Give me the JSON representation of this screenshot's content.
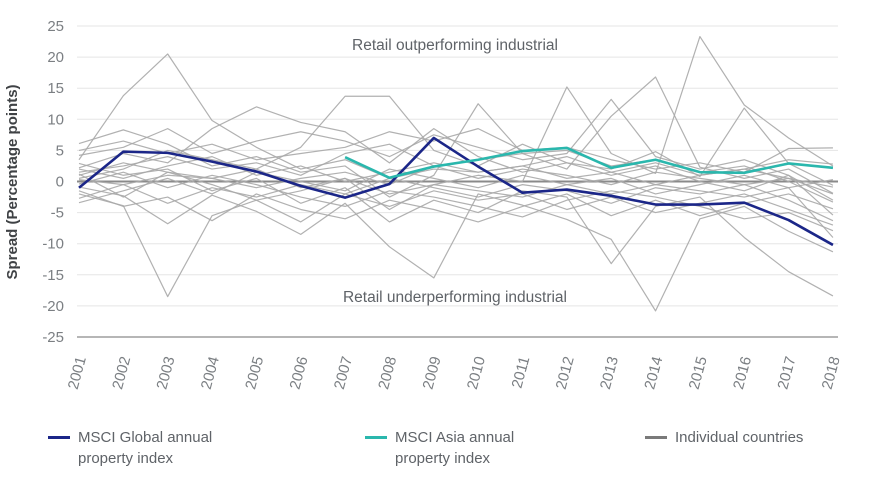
{
  "chart_data": {
    "type": "line",
    "title": "",
    "xlabel": "",
    "ylabel": "Spread (Percentage points)",
    "ylim": [
      -25,
      25
    ],
    "ytick_step": 5,
    "grid": "horizontal",
    "legend_position": "bottom",
    "x": [
      2001,
      2002,
      2003,
      2004,
      2005,
      2006,
      2007,
      2008,
      2009,
      2010,
      2011,
      2012,
      2013,
      2014,
      2015,
      2016,
      2017,
      2018
    ],
    "annotations": [
      {
        "text": "Retail outperforming industrial",
        "x": 2009.5,
        "y": 22
      },
      {
        "text": "Retail underperforming industrial",
        "x": 2009.5,
        "y": -18.5
      }
    ],
    "series": [
      {
        "name": "MSCI Global annual property index",
        "color": "#1b2688",
        "stroke_width": 2.6,
        "start_year": 2001,
        "values": [
          -1.0,
          4.8,
          4.6,
          3.2,
          1.6,
          -0.7,
          -2.6,
          -0.4,
          7.0,
          2.4,
          -1.8,
          -1.3,
          -2.3,
          -3.7,
          -3.7,
          -3.4,
          -6.2,
          -10.2
        ]
      },
      {
        "name": "MSCI Asia annual property index",
        "color": "#2ab7ad",
        "stroke_width": 2.6,
        "start_year": 2007,
        "values": [
          3.9,
          0.6,
          2.4,
          3.5,
          4.9,
          5.4,
          2.2,
          3.5,
          1.5,
          1.4,
          2.9,
          2.2
        ]
      },
      {
        "name": "Individual countries",
        "color": "#a9a9a9",
        "stroke_width": 1.2,
        "start_year": 2001,
        "lines": [
          [
            3.5,
            13.8,
            20.5,
            9.8,
            5.5,
            2.0,
            3.5,
            0.5,
            2.0,
            1.5,
            2.5,
            0.5,
            1.5,
            -0.5,
            1.0,
            2.0,
            0.5,
            -2.0
          ],
          [
            -2.0,
            -3.9,
            -18.5,
            -5.5,
            -3.0,
            -6.5,
            -2.0,
            -4.0,
            -1.5,
            -3.0,
            -2.0,
            -4.5,
            -2.5,
            -5.0,
            -3.5,
            -2.0,
            -4.5,
            -7.0
          ],
          [
            2.2,
            4.5,
            3.0,
            8.5,
            12.0,
            9.5,
            8.0,
            3.0,
            8.5,
            4.0,
            1.5,
            3.0,
            1.0,
            2.5,
            0.0,
            -1.5,
            1.0,
            -3.0
          ],
          [
            0.5,
            2.0,
            5.0,
            3.5,
            2.0,
            5.5,
            13.7,
            13.7,
            5.0,
            2.5,
            6.0,
            3.0,
            2.0,
            4.8,
            0.8,
            11.8,
            2.9,
            -0.6
          ],
          [
            6.1,
            8.3,
            6.0,
            2.5,
            4.0,
            1.5,
            2.5,
            -2.5,
            1.0,
            12.5,
            4.5,
            2.0,
            10.5,
            16.8,
            2.3,
            0.5,
            2.0,
            -1.9
          ],
          [
            1.0,
            3.0,
            1.5,
            0.5,
            2.0,
            -1.0,
            0.5,
            -2.0,
            -0.5,
            1.0,
            0.0,
            15.2,
            4.5,
            1.3,
            23.3,
            12.3,
            7.0,
            2.5
          ],
          [
            -0.9,
            -2.3,
            -6.8,
            -2.2,
            -4.8,
            -8.5,
            -3.5,
            -10.5,
            -15.5,
            -2.0,
            -3.8,
            -6.1,
            -9.3,
            -20.8,
            -6.0,
            -4.0,
            -8.0,
            -11.3
          ],
          [
            2.9,
            1.0,
            2.0,
            -1.5,
            0.5,
            -3.5,
            -1.0,
            -6.5,
            -3.0,
            -5.0,
            -1.5,
            -2.5,
            -13.2,
            -4.0,
            -2.5,
            -9.0,
            -14.5,
            -18.4
          ],
          [
            5.0,
            6.5,
            4.5,
            6.0,
            3.5,
            4.5,
            5.5,
            8.0,
            6.5,
            8.5,
            5.0,
            5.5,
            3.5,
            2.0,
            3.0,
            1.5,
            5.3,
            5.4
          ],
          [
            -3.4,
            -1.5,
            0.5,
            -2.0,
            1.5,
            0.0,
            -1.5,
            2.0,
            0.5,
            -1.0,
            1.0,
            -0.5,
            0.5,
            -2.0,
            -0.5,
            1.0,
            -1.0,
            0.3
          ],
          [
            0.3,
            -0.5,
            1.0,
            0.5,
            -1.0,
            0.5,
            1.5,
            -0.5,
            2.5,
            0.5,
            2.0,
            1.0,
            -0.5,
            1.5,
            0.5,
            -0.5,
            0.5,
            -0.9
          ],
          [
            1.5,
            2.5,
            4.0,
            2.0,
            3.0,
            1.0,
            4.5,
            6.0,
            2.5,
            3.5,
            4.5,
            5.0,
            2.5,
            3.5,
            1.5,
            2.5,
            0.0,
            -3.3
          ],
          [
            -1.5,
            -4.0,
            -2.5,
            -6.3,
            -2.0,
            -4.5,
            -6.0,
            -3.0,
            -4.5,
            -6.5,
            -4.0,
            -2.0,
            -5.5,
            -3.0,
            -5.5,
            -3.5,
            -2.0,
            -4.4
          ],
          [
            4.2,
            5.5,
            8.5,
            4.5,
            6.5,
            8.0,
            6.5,
            4.0,
            7.5,
            5.5,
            3.5,
            4.5,
            13.2,
            4.0,
            2.0,
            3.5,
            1.0,
            -5.4
          ],
          [
            -2.7,
            -0.5,
            -3.5,
            -1.0,
            -2.5,
            -0.5,
            -2.0,
            0.5,
            -1.0,
            -2.5,
            -0.5,
            -1.5,
            -3.5,
            -1.0,
            -2.0,
            -0.5,
            -3.0,
            -6.3
          ],
          [
            2.0,
            0.5,
            2.5,
            4.0,
            1.0,
            2.5,
            0.0,
            1.5,
            3.0,
            1.5,
            2.5,
            4.0,
            1.5,
            3.0,
            1.0,
            2.0,
            3.5,
            2.8
          ],
          [
            -0.4,
            1.5,
            -1.0,
            1.0,
            -0.5,
            -2.5,
            -4.0,
            -1.5,
            -2.5,
            -4.0,
            -5.7,
            -3.0,
            -1.5,
            -2.5,
            -4.0,
            -6.0,
            -5.0,
            -7.9
          ],
          [
            1.2,
            -2.5,
            1.5,
            -0.5,
            -3.0,
            -1.5,
            0.5,
            -4.5,
            -0.5,
            -1.5,
            -2.5,
            -0.5,
            -2.0,
            -0.5,
            -1.5,
            -2.5,
            -1.0,
            -9.0
          ]
        ]
      }
    ],
    "colors": {
      "grid_line": "#e5e5e5",
      "zero_line": "#8a8a8a",
      "bottom_axis": "#9e9e9e",
      "tick_text": "#7b7f83",
      "annotation_text": "#5f6368",
      "background": "#ffffff"
    }
  },
  "legend": {
    "items": [
      {
        "label": "MSCI Global annual\nproperty index",
        "color": "#1b2688"
      },
      {
        "label": "MSCI Asia annual\nproperty index",
        "color": "#2ab7ad"
      },
      {
        "label": "Individual countries",
        "color": "#7a7a7a"
      }
    ]
  }
}
